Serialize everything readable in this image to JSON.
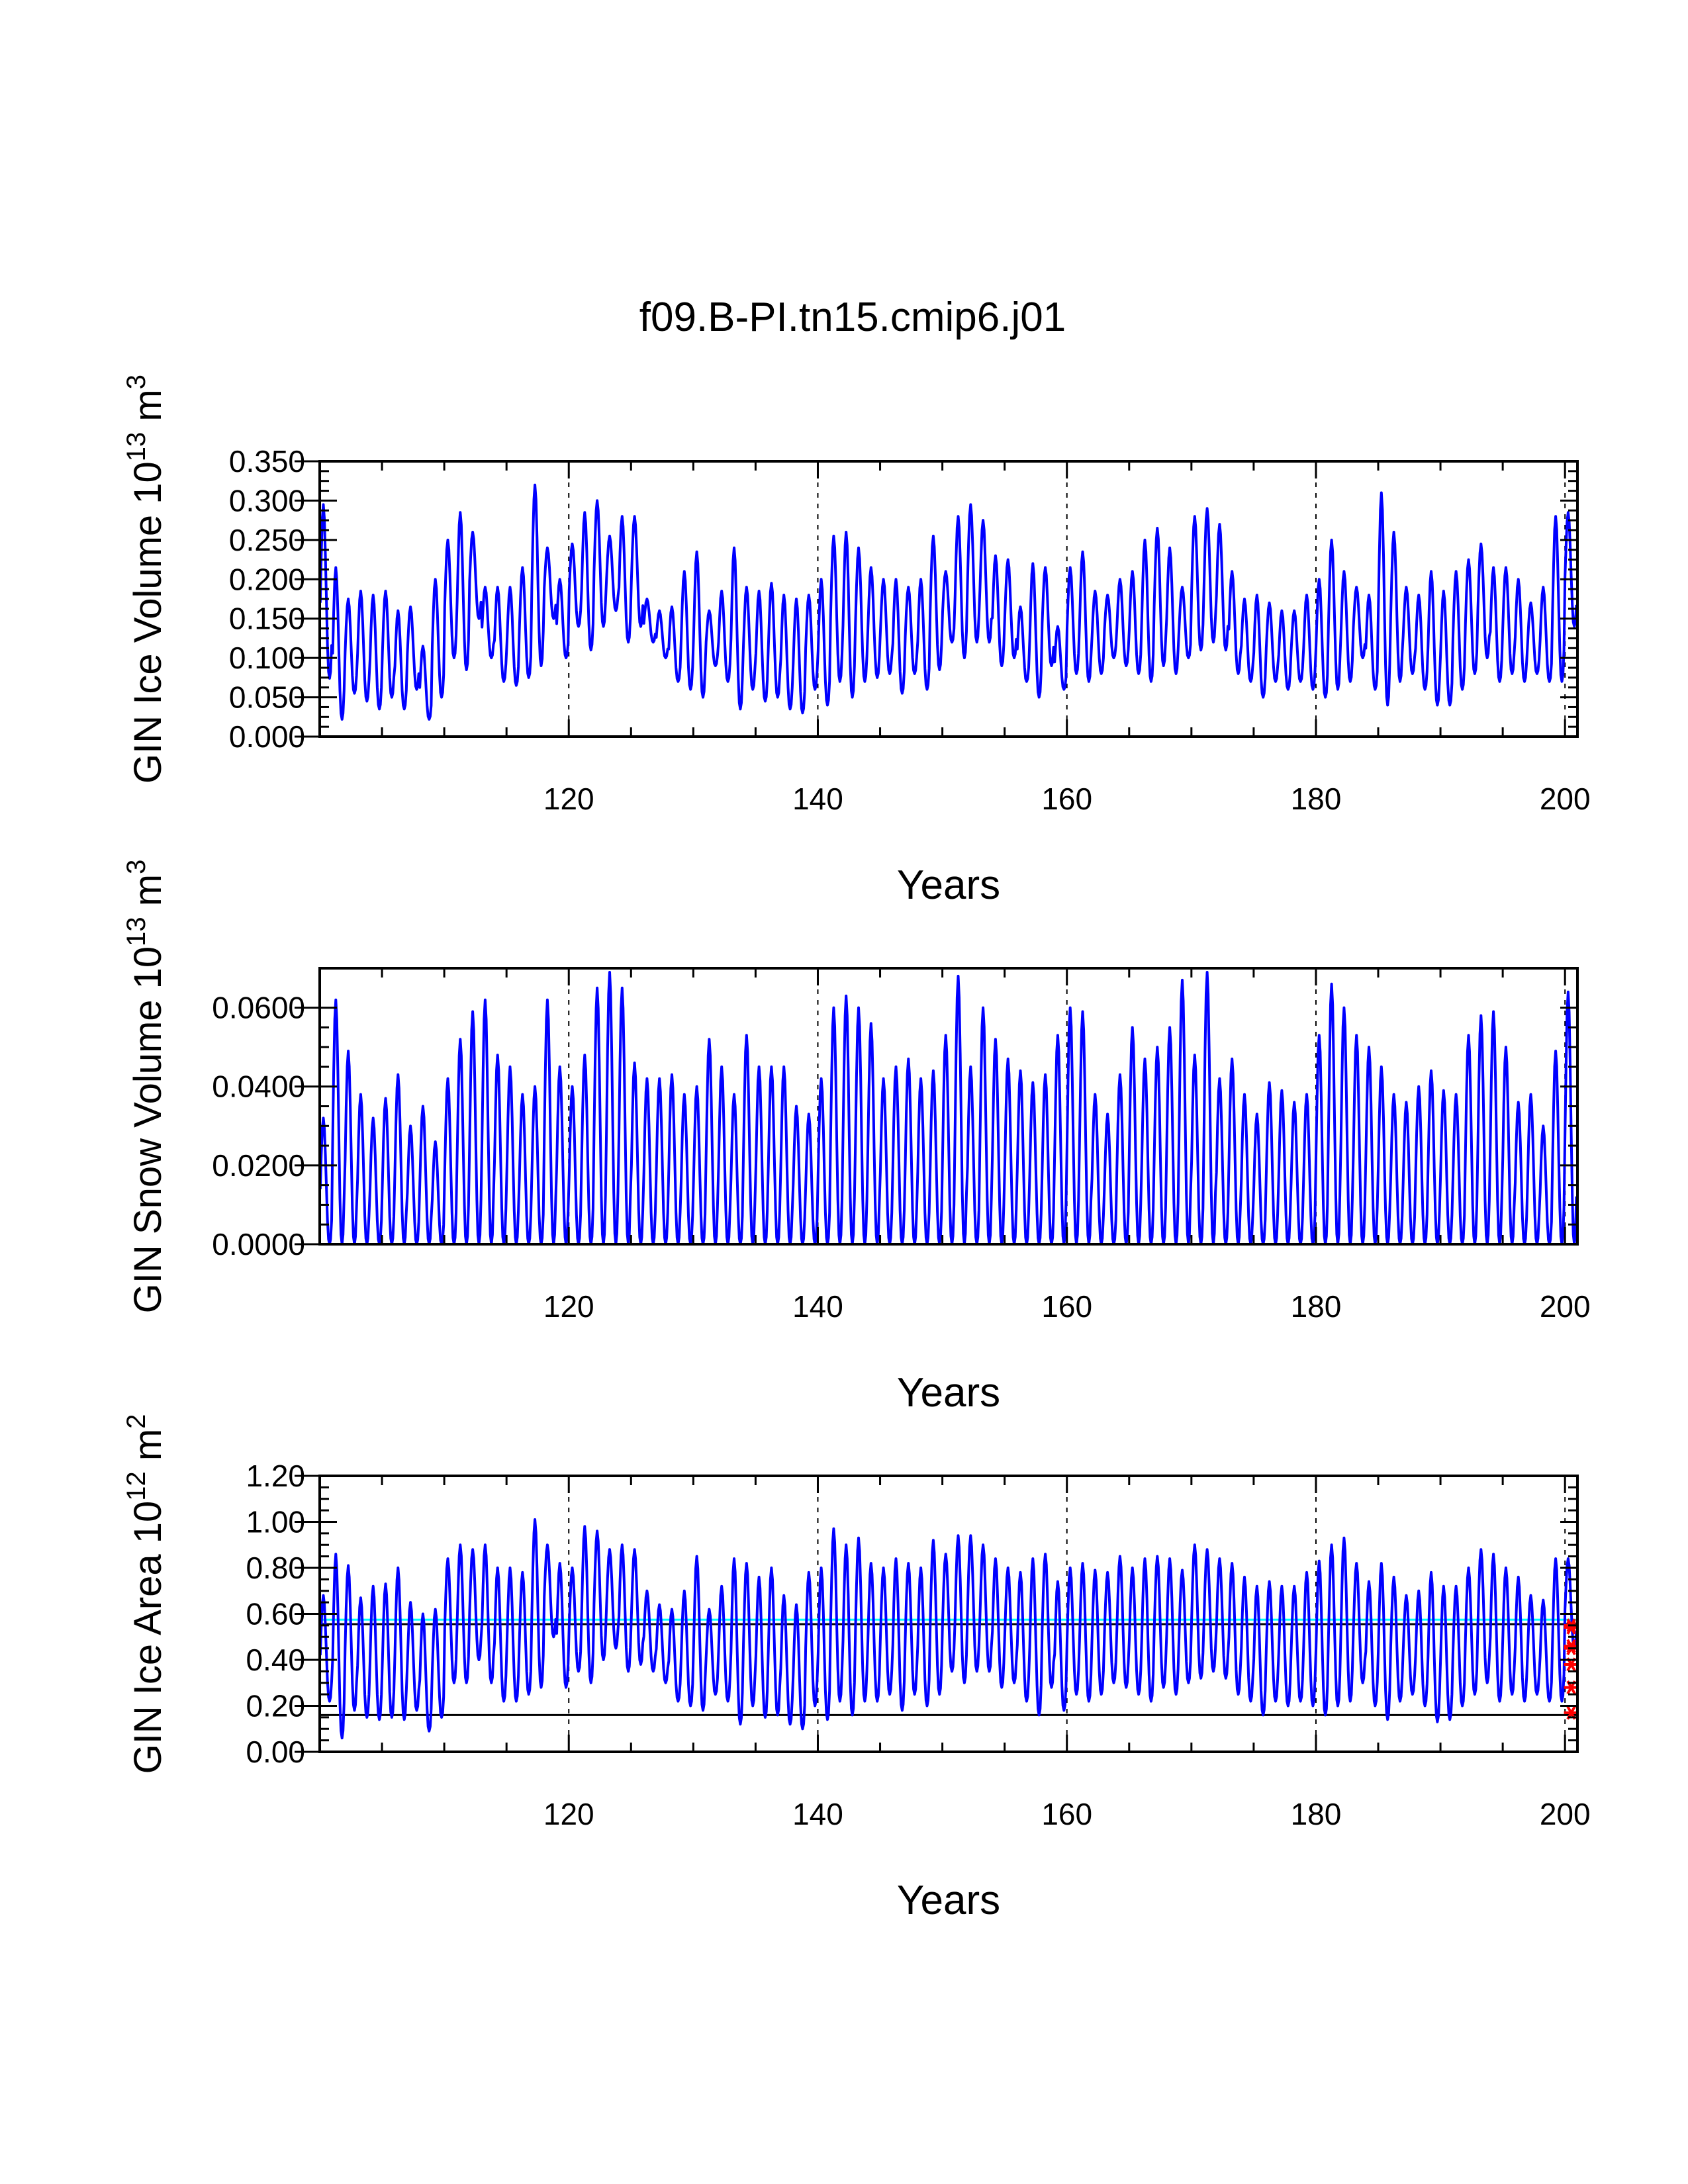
{
  "figure_title": "f09.B-PI.tn15.cmip6.j01",
  "colors": {
    "series": "#0000ff",
    "frame": "#000000",
    "ref_cyan": "#00ffff",
    "ref_black": "#000000",
    "marker": "#ff0000"
  },
  "chart_data": [
    {
      "type": "line",
      "id": "ice_volume",
      "title": "f09.B-PI.tn15.cmip6.j01",
      "xlabel": "Years",
      "ylabel_main": "GIN Ice Volume 10",
      "ylabel_exp": "13",
      "ylabel_unit": " m",
      "ylabel_unit_exp": "3",
      "xlim": [
        100,
        201
      ],
      "ylim": [
        0,
        0.35
      ],
      "x_ticks": [
        120,
        140,
        160,
        180,
        200
      ],
      "x_tick_labels": [
        "120",
        "140",
        "160",
        "180",
        "200"
      ],
      "y_ticks": [
        0,
        0.05,
        0.1,
        0.15,
        0.2,
        0.25,
        0.3,
        0.35
      ],
      "y_tick_labels": [
        "0.000",
        "0.050",
        "0.100",
        "0.150",
        "0.200",
        "0.250",
        "0.300",
        "0.350"
      ],
      "vlines": [
        120,
        140,
        160,
        180,
        200
      ],
      "series": [
        {
          "name": "GIN Ice Volume",
          "x_start": 100.04,
          "x_step": 0.0833,
          "annual_min": [
            0.074,
            0.022,
            0.055,
            0.045,
            0.035,
            0.05,
            0.035,
            0.06,
            0.022,
            0.05,
            0.1,
            0.085,
            0.15,
            0.1,
            0.07,
            0.065,
            0.075,
            0.09,
            0.15,
            0.1,
            0.14,
            0.11,
            0.14,
            0.16,
            0.12,
            0.14,
            0.12,
            0.1,
            0.07,
            0.06,
            0.05,
            0.09,
            0.07,
            0.035,
            0.06,
            0.045,
            0.05,
            0.035,
            0.03,
            0.06,
            0.04,
            0.07,
            0.05,
            0.07,
            0.075,
            0.08,
            0.055,
            0.08,
            0.06,
            0.085,
            0.12,
            0.1,
            0.12,
            0.12,
            0.09,
            0.1,
            0.07,
            0.05,
            0.09,
            0.06,
            0.08,
            0.07,
            0.08,
            0.1,
            0.09,
            0.08,
            0.07,
            0.09,
            0.08,
            0.1,
            0.11,
            0.12,
            0.11,
            0.08,
            0.07,
            0.05,
            0.07,
            0.06,
            0.07,
            0.06,
            0.05,
            0.06,
            0.07,
            0.1,
            0.06,
            0.04,
            0.07,
            0.08,
            0.06,
            0.04,
            0.04,
            0.06,
            0.08,
            0.1,
            0.07,
            0.08,
            0.07,
            0.08,
            0.07,
            0.07,
            0.14
          ],
          "annual_max": [
            0.295,
            0.215,
            0.175,
            0.185,
            0.18,
            0.185,
            0.16,
            0.165,
            0.115,
            0.2,
            0.25,
            0.285,
            0.26,
            0.19,
            0.19,
            0.19,
            0.215,
            0.32,
            0.24,
            0.2,
            0.245,
            0.285,
            0.3,
            0.255,
            0.28,
            0.28,
            0.175,
            0.16,
            0.165,
            0.21,
            0.235,
            0.16,
            0.185,
            0.24,
            0.19,
            0.185,
            0.195,
            0.18,
            0.175,
            0.18,
            0.2,
            0.255,
            0.26,
            0.24,
            0.215,
            0.2,
            0.2,
            0.19,
            0.2,
            0.255,
            0.21,
            0.28,
            0.295,
            0.275,
            0.23,
            0.225,
            0.165,
            0.22,
            0.215,
            0.14,
            0.215,
            0.235,
            0.185,
            0.18,
            0.2,
            0.21,
            0.25,
            0.265,
            0.24,
            0.19,
            0.28,
            0.29,
            0.27,
            0.21,
            0.175,
            0.18,
            0.17,
            0.16,
            0.16,
            0.18,
            0.2,
            0.25,
            0.21,
            0.19,
            0.18,
            0.31,
            0.26,
            0.19,
            0.18,
            0.21,
            0.185,
            0.21,
            0.225,
            0.245,
            0.215,
            0.215,
            0.2,
            0.17,
            0.19,
            0.28,
            0.285
          ]
        }
      ]
    },
    {
      "type": "line",
      "id": "snow_volume",
      "title": "",
      "xlabel": "Years",
      "ylabel_main": "GIN Snow Volume 10",
      "ylabel_exp": "13",
      "ylabel_unit": " m",
      "ylabel_unit_exp": "3",
      "xlim": [
        100,
        201
      ],
      "ylim": [
        0,
        0.07
      ],
      "x_ticks": [
        120,
        140,
        160,
        180,
        200
      ],
      "x_tick_labels": [
        "120",
        "140",
        "160",
        "180",
        "200"
      ],
      "y_ticks": [
        0,
        0.02,
        0.04,
        0.06
      ],
      "y_tick_labels": [
        "0.0000",
        "0.0200",
        "0.0400",
        "0.0600"
      ],
      "vlines": [
        120,
        140,
        160,
        180,
        200
      ],
      "series": [
        {
          "name": "GIN Snow Volume",
          "x_start": 100.04,
          "x_step": 0.0833,
          "annual_min": [
            0,
            0,
            0,
            0,
            0,
            0,
            0,
            0,
            0,
            0,
            0,
            0,
            0,
            0,
            0,
            0,
            0,
            0,
            0,
            0,
            0,
            0,
            0,
            0,
            0,
            0,
            0,
            0,
            0,
            0,
            0,
            0,
            0,
            0,
            0,
            0,
            0,
            0,
            0,
            0,
            0,
            0,
            0,
            0,
            0,
            0,
            0,
            0,
            0,
            0,
            0,
            0,
            0,
            0,
            0,
            0,
            0,
            0,
            0,
            0,
            0,
            0,
            0,
            0,
            0,
            0,
            0,
            0,
            0,
            0,
            0,
            0,
            0,
            0,
            0,
            0,
            0,
            0,
            0,
            0,
            0,
            0,
            0,
            0,
            0,
            0,
            0,
            0,
            0,
            0,
            0,
            0,
            0,
            0,
            0,
            0,
            0,
            0,
            0,
            0,
            0
          ],
          "annual_max": [
            0.032,
            0.062,
            0.049,
            0.038,
            0.032,
            0.037,
            0.043,
            0.03,
            0.035,
            0.026,
            0.042,
            0.052,
            0.059,
            0.062,
            0.048,
            0.045,
            0.038,
            0.04,
            0.062,
            0.045,
            0.04,
            0.048,
            0.065,
            0.069,
            0.065,
            0.046,
            0.042,
            0.042,
            0.043,
            0.038,
            0.04,
            0.052,
            0.045,
            0.038,
            0.053,
            0.045,
            0.045,
            0.045,
            0.035,
            0.033,
            0.042,
            0.06,
            0.063,
            0.06,
            0.056,
            0.042,
            0.045,
            0.047,
            0.042,
            0.044,
            0.053,
            0.068,
            0.045,
            0.06,
            0.052,
            0.047,
            0.044,
            0.041,
            0.043,
            0.053,
            0.06,
            0.059,
            0.038,
            0.033,
            0.043,
            0.055,
            0.047,
            0.05,
            0.055,
            0.067,
            0.048,
            0.069,
            0.042,
            0.047,
            0.038,
            0.033,
            0.041,
            0.039,
            0.036,
            0.038,
            0.053,
            0.066,
            0.06,
            0.053,
            0.05,
            0.045,
            0.038,
            0.036,
            0.04,
            0.044,
            0.039,
            0.038,
            0.053,
            0.058,
            0.059,
            0.05,
            0.036,
            0.038,
            0.03,
            0.049,
            0.064
          ]
        }
      ]
    },
    {
      "type": "line",
      "id": "ice_area",
      "title": "",
      "xlabel": "Years",
      "ylabel_main": "GIN Ice Area 10",
      "ylabel_exp": "12",
      "ylabel_unit": " m",
      "ylabel_unit_exp": "2",
      "xlim": [
        100,
        201
      ],
      "ylim": [
        0,
        1.2
      ],
      "x_ticks": [
        120,
        140,
        160,
        180,
        200
      ],
      "x_tick_labels": [
        "120",
        "140",
        "160",
        "180",
        "200"
      ],
      "y_ticks": [
        0,
        0.2,
        0.4,
        0.6,
        0.8,
        1.0,
        1.2
      ],
      "y_tick_labels": [
        "0.00",
        "0.20",
        "0.40",
        "0.60",
        "0.80",
        "1.00",
        "1.20"
      ],
      "vlines": [
        120,
        140,
        160,
        180,
        200
      ],
      "hlines": [
        {
          "y": 0.575,
          "color": "cyan"
        },
        {
          "y": 0.555,
          "color": "black"
        },
        {
          "y": 0.16,
          "color": "black"
        }
      ],
      "markers": {
        "x": 200.5,
        "y": [
          0.55,
          0.54,
          0.46,
          0.45,
          0.38,
          0.28,
          0.17
        ]
      },
      "series": [
        {
          "name": "GIN Ice Area",
          "x_start": 100.04,
          "x_step": 0.0833,
          "annual_min": [
            0.22,
            0.06,
            0.18,
            0.15,
            0.14,
            0.15,
            0.14,
            0.18,
            0.09,
            0.15,
            0.3,
            0.3,
            0.4,
            0.3,
            0.22,
            0.22,
            0.25,
            0.28,
            0.5,
            0.28,
            0.35,
            0.3,
            0.4,
            0.45,
            0.35,
            0.38,
            0.35,
            0.3,
            0.22,
            0.2,
            0.18,
            0.25,
            0.22,
            0.12,
            0.2,
            0.15,
            0.16,
            0.12,
            0.1,
            0.2,
            0.14,
            0.22,
            0.16,
            0.22,
            0.22,
            0.25,
            0.18,
            0.25,
            0.2,
            0.25,
            0.35,
            0.3,
            0.35,
            0.35,
            0.28,
            0.3,
            0.22,
            0.16,
            0.28,
            0.18,
            0.25,
            0.22,
            0.25,
            0.3,
            0.28,
            0.25,
            0.22,
            0.28,
            0.25,
            0.3,
            0.32,
            0.35,
            0.32,
            0.25,
            0.22,
            0.16,
            0.22,
            0.2,
            0.22,
            0.2,
            0.16,
            0.2,
            0.22,
            0.3,
            0.2,
            0.14,
            0.22,
            0.25,
            0.2,
            0.13,
            0.14,
            0.2,
            0.25,
            0.3,
            0.22,
            0.25,
            0.22,
            0.25,
            0.22,
            0.22,
            0.45
          ],
          "annual_max": [
            0.68,
            0.86,
            0.81,
            0.67,
            0.72,
            0.73,
            0.8,
            0.65,
            0.6,
            0.62,
            0.84,
            0.9,
            0.88,
            0.9,
            0.8,
            0.8,
            0.78,
            1.01,
            0.9,
            0.82,
            0.8,
            0.98,
            0.96,
            0.88,
            0.9,
            0.88,
            0.7,
            0.64,
            0.62,
            0.7,
            0.85,
            0.62,
            0.72,
            0.84,
            0.82,
            0.76,
            0.8,
            0.68,
            0.64,
            0.78,
            0.8,
            0.97,
            0.9,
            0.93,
            0.82,
            0.8,
            0.84,
            0.82,
            0.8,
            0.92,
            0.86,
            0.94,
            0.94,
            0.9,
            0.84,
            0.8,
            0.78,
            0.84,
            0.86,
            0.74,
            0.8,
            0.82,
            0.79,
            0.78,
            0.85,
            0.8,
            0.84,
            0.85,
            0.84,
            0.79,
            0.9,
            0.88,
            0.84,
            0.82,
            0.76,
            0.72,
            0.74,
            0.72,
            0.72,
            0.78,
            0.83,
            0.9,
            0.93,
            0.82,
            0.74,
            0.82,
            0.76,
            0.68,
            0.7,
            0.78,
            0.72,
            0.72,
            0.8,
            0.88,
            0.86,
            0.8,
            0.76,
            0.68,
            0.66,
            0.84,
            0.84
          ]
        }
      ]
    }
  ]
}
